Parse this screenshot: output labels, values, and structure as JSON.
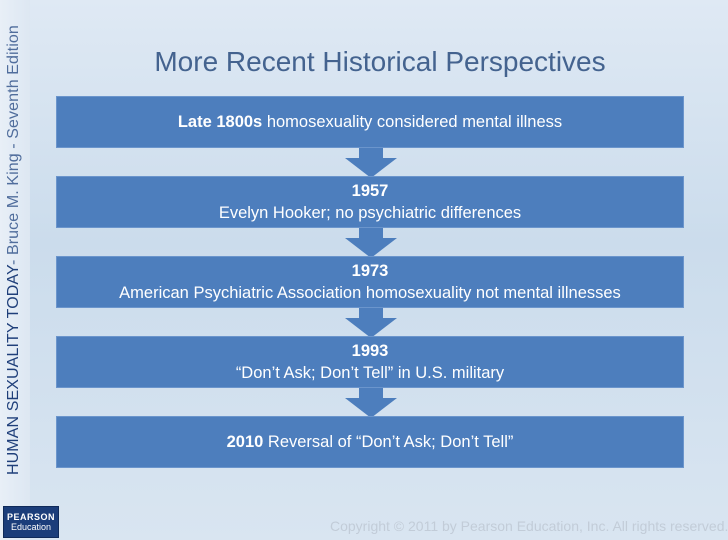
{
  "sidebar": {
    "book_title": "HUMAN SEXUALITY TODAY",
    "author_edition": " - Bruce M. King - Seventh Edition"
  },
  "logo": {
    "line1": "PEARSON",
    "line2": "Education"
  },
  "slide": {
    "title": "More Recent Historical Perspectives"
  },
  "timeline": [
    {
      "year": "Late 1800s",
      "text": " homosexuality considered mental illness"
    },
    {
      "year": "1957",
      "text": "Evelyn Hooker; no psychiatric differences"
    },
    {
      "year": "1973",
      "text": "American Psychiatric Association homosexuality not mental illnesses"
    },
    {
      "year": "1993",
      "text": "“Don’t Ask; Don’t Tell” in U.S. military"
    },
    {
      "year": "2010",
      "text": " Reversal of “Don’t Ask; Don’t Tell”"
    }
  ],
  "footer": {
    "copyright": "Copyright © 2011 by Pearson Education, Inc. All rights reserved."
  },
  "colors": {
    "box": "#4d7ebd",
    "title": "#44638f",
    "arrow": "#4d7ebd"
  }
}
